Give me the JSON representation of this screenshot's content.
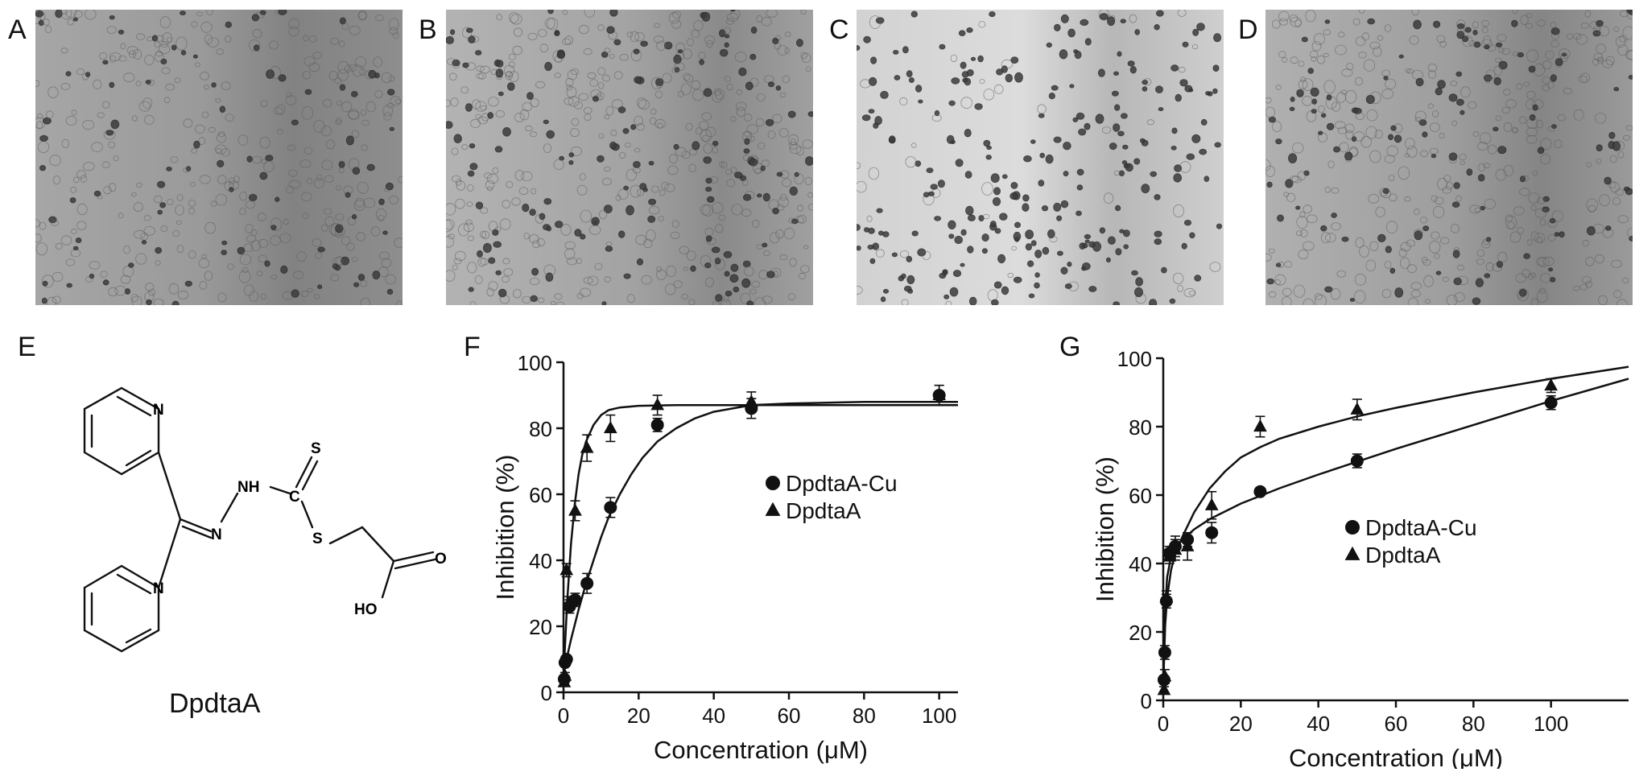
{
  "panels": {
    "a": {
      "letter": "A"
    },
    "b": {
      "letter": "B"
    },
    "c": {
      "letter": "C"
    },
    "d": {
      "letter": "D"
    },
    "e": {
      "letter": "E"
    },
    "f": {
      "letter": "F"
    },
    "g": {
      "letter": "G"
    }
  },
  "structure": {
    "name": "DpdtaA",
    "atoms": {
      "n_top_ring": "N",
      "n_bottom_ring": "N",
      "nh": "NH",
      "n_imine": "N",
      "s_thione": "S",
      "c_center": "C",
      "s_thioether": "S",
      "o_carbonyl": "O",
      "ho": "HO"
    }
  },
  "colors": {
    "ink": "#111111",
    "micro_bg_a": "#8f8f8f",
    "micro_bg_c": "#cfcfcf"
  },
  "chart_data": [
    {
      "panel": "F",
      "type": "scatter",
      "xlabel": "Concentration (μM)",
      "ylabel": "Inhibition (%)",
      "xlim": [
        0,
        105
      ],
      "ylim": [
        0,
        100
      ],
      "xticks": [
        0,
        20,
        40,
        60,
        80,
        100
      ],
      "yticks": [
        0,
        20,
        40,
        60,
        80,
        100
      ],
      "legend_position": "middle-right",
      "series": [
        {
          "name": "DpdtaA-Cu",
          "marker": "circle",
          "x": [
            0.2,
            0.4,
            0.8,
            1.6,
            3.1,
            6.25,
            12.5,
            25,
            50,
            100
          ],
          "y": [
            4,
            9,
            10,
            26,
            28,
            33,
            56,
            81,
            86,
            90
          ],
          "err": [
            1,
            1,
            1,
            2,
            2,
            3,
            3,
            2,
            3,
            3
          ]
        },
        {
          "name": "DpdtaA",
          "marker": "triangle",
          "x": [
            0.2,
            0.4,
            0.8,
            1.6,
            3.1,
            6.25,
            12.5,
            25,
            50,
            100
          ],
          "y": [
            3,
            5,
            37,
            27,
            55,
            74,
            80,
            87,
            88,
            90
          ],
          "err": [
            1,
            1,
            2,
            2,
            3,
            4,
            4,
            3,
            3,
            3
          ]
        }
      ],
      "fits": {
        "DpdtaA-Cu": {
          "x": [
            0,
            2,
            4,
            6,
            8,
            10,
            12,
            15,
            18,
            21,
            25,
            30,
            35,
            40,
            50,
            60,
            80,
            105
          ],
          "y": [
            6,
            16,
            25,
            33,
            40,
            47,
            53,
            60,
            66,
            71,
            76,
            80,
            83,
            85,
            87,
            87.5,
            88,
            88
          ]
        },
        "DpdtaA": {
          "x": [
            0,
            1,
            2,
            3,
            4,
            5,
            6,
            8,
            10,
            12,
            15,
            20,
            30,
            105
          ],
          "y": [
            5,
            28,
            45,
            57,
            66,
            72,
            76,
            81,
            84,
            85.5,
            86.3,
            86.8,
            87,
            87
          ]
        }
      }
    },
    {
      "panel": "G",
      "type": "scatter",
      "xlabel": "Concentration (μM)",
      "ylabel": "Inhibition (%)",
      "xlim": [
        0,
        120
      ],
      "ylim": [
        0,
        100
      ],
      "xticks": [
        0,
        20,
        40,
        60,
        80,
        100
      ],
      "yticks": [
        0,
        20,
        40,
        60,
        80,
        100
      ],
      "legend_position": "middle-right",
      "series": [
        {
          "name": "DpdtaA-Cu",
          "marker": "circle",
          "x": [
            0.2,
            0.4,
            0.8,
            1.6,
            3.1,
            6.25,
            12.5,
            25,
            50,
            100
          ],
          "y": [
            6,
            14,
            29,
            43,
            45,
            47,
            49,
            61,
            70,
            87
          ],
          "err": [
            1,
            2,
            2,
            2,
            3,
            2,
            3,
            1,
            2,
            2
          ]
        },
        {
          "name": "DpdtaA",
          "marker": "triangle",
          "x": [
            0.2,
            0.4,
            0.8,
            1.6,
            3.1,
            6.25,
            12.5,
            25,
            50,
            100
          ],
          "y": [
            3,
            7,
            30,
            42,
            44,
            45,
            57,
            80,
            85,
            92
          ],
          "err": [
            1,
            2,
            2,
            2,
            3,
            4,
            4,
            3,
            3,
            2
          ]
        }
      ],
      "fits": {
        "DpdtaA-Cu": {
          "x": [
            0,
            0.5,
            1,
            2,
            3,
            5,
            8,
            12,
            20,
            30,
            40,
            60,
            80,
            100,
            120
          ],
          "y": [
            5,
            26,
            36,
            42,
            44.5,
            47,
            50,
            53,
            57.5,
            62,
            66,
            73.5,
            80.5,
            87.5,
            94
          ]
        },
        "DpdtaA": {
          "x": [
            0,
            0.5,
            1,
            2,
            3,
            5,
            8,
            12,
            16,
            20,
            25,
            30,
            40,
            50,
            60,
            80,
            100,
            120
          ],
          "y": [
            4,
            22,
            30,
            38,
            42.5,
            48,
            55,
            62,
            67,
            71,
            74,
            76.5,
            80,
            83,
            85.5,
            90,
            94,
            97.5
          ]
        }
      }
    }
  ]
}
